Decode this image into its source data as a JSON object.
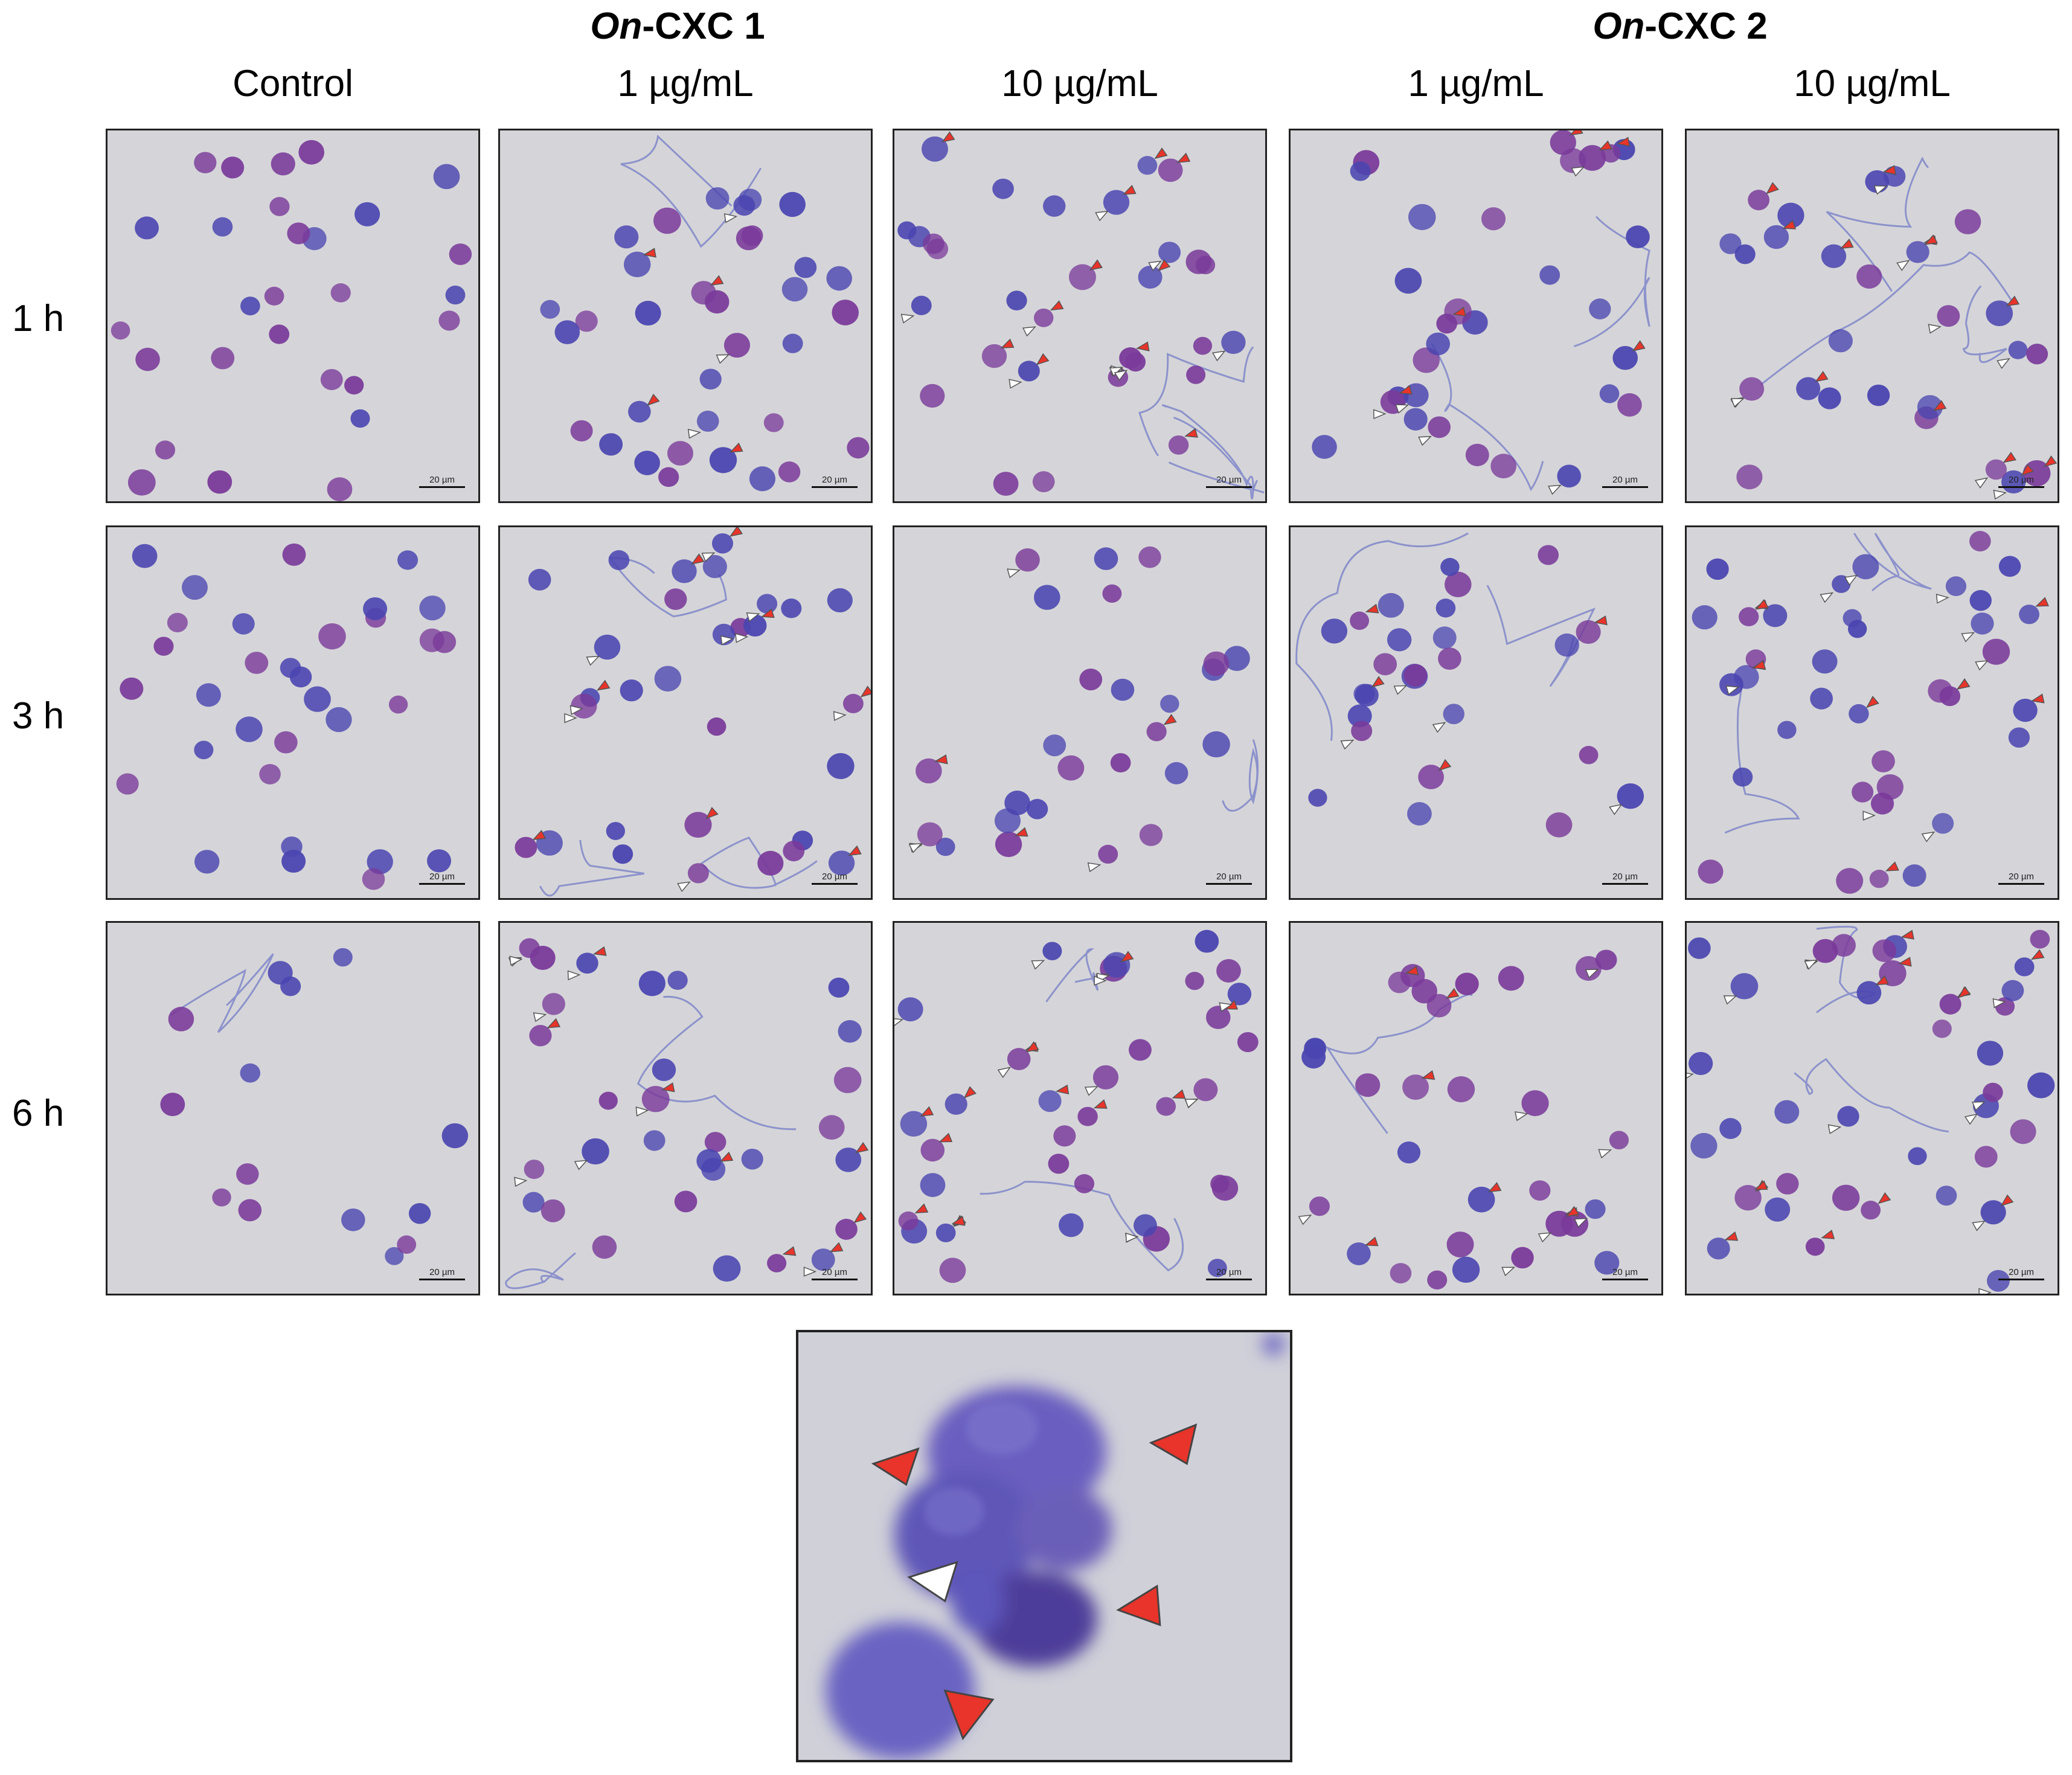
{
  "groups": [
    {
      "italic": "On",
      "rest": "-CXC 1"
    },
    {
      "italic": "On",
      "rest": "-CXC 2"
    }
  ],
  "columns": [
    "Control",
    "1 µg/mL",
    "10 µg/mL",
    "1 µg/mL",
    "10 µg/mL"
  ],
  "rows": [
    "1 h",
    "3 h",
    "6 h"
  ],
  "scale_bar": "20 µm",
  "colors": {
    "background": "#d5d5d9",
    "nucleus_blue": "#4a45b0",
    "nucleus_purple": "#7a3a9a",
    "net_fiber": "#7f86c8",
    "arrow_red": "#e8342a",
    "arrow_white": "#ffffff"
  },
  "panels": [
    {
      "row": 0,
      "col": 0,
      "cells": 28,
      "nets": 0,
      "red_arrows": 0,
      "white_arrows": 0
    },
    {
      "row": 0,
      "col": 1,
      "cells": 34,
      "nets": 1,
      "red_arrows": 4,
      "white_arrows": 3
    },
    {
      "row": 0,
      "col": 2,
      "cells": 30,
      "nets": 3,
      "red_arrows": 11,
      "white_arrows": 10
    },
    {
      "row": 0,
      "col": 3,
      "cells": 30,
      "nets": 2,
      "red_arrows": 6,
      "white_arrows": 5
    },
    {
      "row": 0,
      "col": 4,
      "cells": 26,
      "nets": 3,
      "red_arrows": 12,
      "white_arrows": 8
    },
    {
      "row": 1,
      "col": 0,
      "cells": 32,
      "nets": 0,
      "red_arrows": 0,
      "white_arrows": 0
    },
    {
      "row": 1,
      "col": 1,
      "cells": 30,
      "nets": 3,
      "red_arrows": 8,
      "white_arrows": 9
    },
    {
      "row": 1,
      "col": 2,
      "cells": 26,
      "nets": 1,
      "red_arrows": 3,
      "white_arrows": 4
    },
    {
      "row": 1,
      "col": 3,
      "cells": 26,
      "nets": 2,
      "red_arrows": 4,
      "white_arrows": 4
    },
    {
      "row": 1,
      "col": 4,
      "cells": 36,
      "nets": 2,
      "red_arrows": 11,
      "white_arrows": 9
    },
    {
      "row": 2,
      "col": 0,
      "cells": 14,
      "nets": 1,
      "red_arrows": 0,
      "white_arrows": 0
    },
    {
      "row": 2,
      "col": 1,
      "cells": 30,
      "nets": 2,
      "red_arrows": 8,
      "white_arrows": 8
    },
    {
      "row": 2,
      "col": 2,
      "cells": 34,
      "nets": 2,
      "red_arrows": 14,
      "white_arrows": 12
    },
    {
      "row": 2,
      "col": 3,
      "cells": 30,
      "nets": 1,
      "red_arrows": 7,
      "white_arrows": 7
    },
    {
      "row": 2,
      "col": 4,
      "cells": 36,
      "nets": 2,
      "red_arrows": 12,
      "white_arrows": 10
    }
  ],
  "inset": {
    "red_arrows": 4,
    "white_arrows": 1
  }
}
